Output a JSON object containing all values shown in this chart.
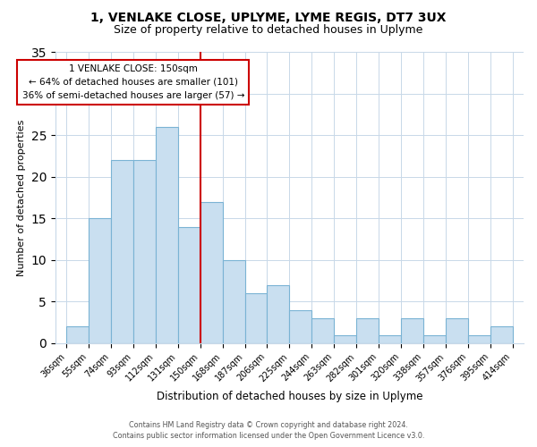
{
  "title": "1, VENLAKE CLOSE, UPLYME, LYME REGIS, DT7 3UX",
  "subtitle": "Size of property relative to detached houses in Uplyme",
  "xlabel": "Distribution of detached houses by size in Uplyme",
  "ylabel": "Number of detached properties",
  "categories": [
    "36sqm",
    "55sqm",
    "74sqm",
    "93sqm",
    "112sqm",
    "131sqm",
    "150sqm",
    "168sqm",
    "187sqm",
    "206sqm",
    "225sqm",
    "244sqm",
    "263sqm",
    "282sqm",
    "301sqm",
    "320sqm",
    "338sqm",
    "357sqm",
    "376sqm",
    "395sqm",
    "414sqm"
  ],
  "values": [
    2,
    15,
    22,
    22,
    26,
    14,
    17,
    10,
    6,
    7,
    4,
    3,
    1,
    3,
    1,
    3,
    1,
    3,
    1,
    2
  ],
  "bar_color": "#c9dff0",
  "bar_edge_color": "#7ab3d4",
  "vline_color": "#cc0000",
  "vline_index": 6,
  "annotation_title": "1 VENLAKE CLOSE: 150sqm",
  "annotation_line1": "← 64% of detached houses are smaller (101)",
  "annotation_line2": "36% of semi-detached houses are larger (57) →",
  "annotation_box_facecolor": "#ffffff",
  "annotation_box_edgecolor": "#cc0000",
  "ylim": [
    0,
    35
  ],
  "yticks": [
    0,
    5,
    10,
    15,
    20,
    25,
    30,
    35
  ],
  "footer1": "Contains HM Land Registry data © Crown copyright and database right 2024.",
  "footer2": "Contains public sector information licensed under the Open Government Licence v3.0.",
  "background_color": "#ffffff",
  "grid_color": "#c8d8e8"
}
